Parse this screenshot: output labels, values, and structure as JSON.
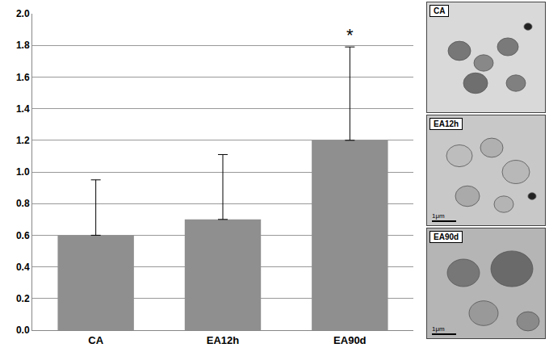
{
  "chart_data": {
    "type": "bar",
    "categories": [
      "CA",
      "EA12h",
      "EA90d"
    ],
    "values": [
      0.6,
      0.7,
      1.2
    ],
    "errors": [
      0.35,
      0.41,
      0.59
    ],
    "color": "#8f8f8f",
    "ylim": [
      0,
      2.0
    ],
    "yticks": [
      {
        "value": 0,
        "label": "0.0"
      },
      0.2,
      0.4,
      0.6,
      0.8,
      {
        "value": 1,
        "label": "1.0"
      },
      1.2,
      1.4,
      1.6,
      1.8,
      {
        "value": 2,
        "label": "2.0"
      }
    ],
    "grid": true,
    "annotations": [
      {
        "category": "EA90d",
        "text": "*"
      }
    ]
  },
  "micrographs": [
    {
      "label": "CA"
    },
    {
      "label": "EA12h",
      "scale": "1μm"
    },
    {
      "label": "EA90d",
      "scale": "1μm"
    }
  ]
}
